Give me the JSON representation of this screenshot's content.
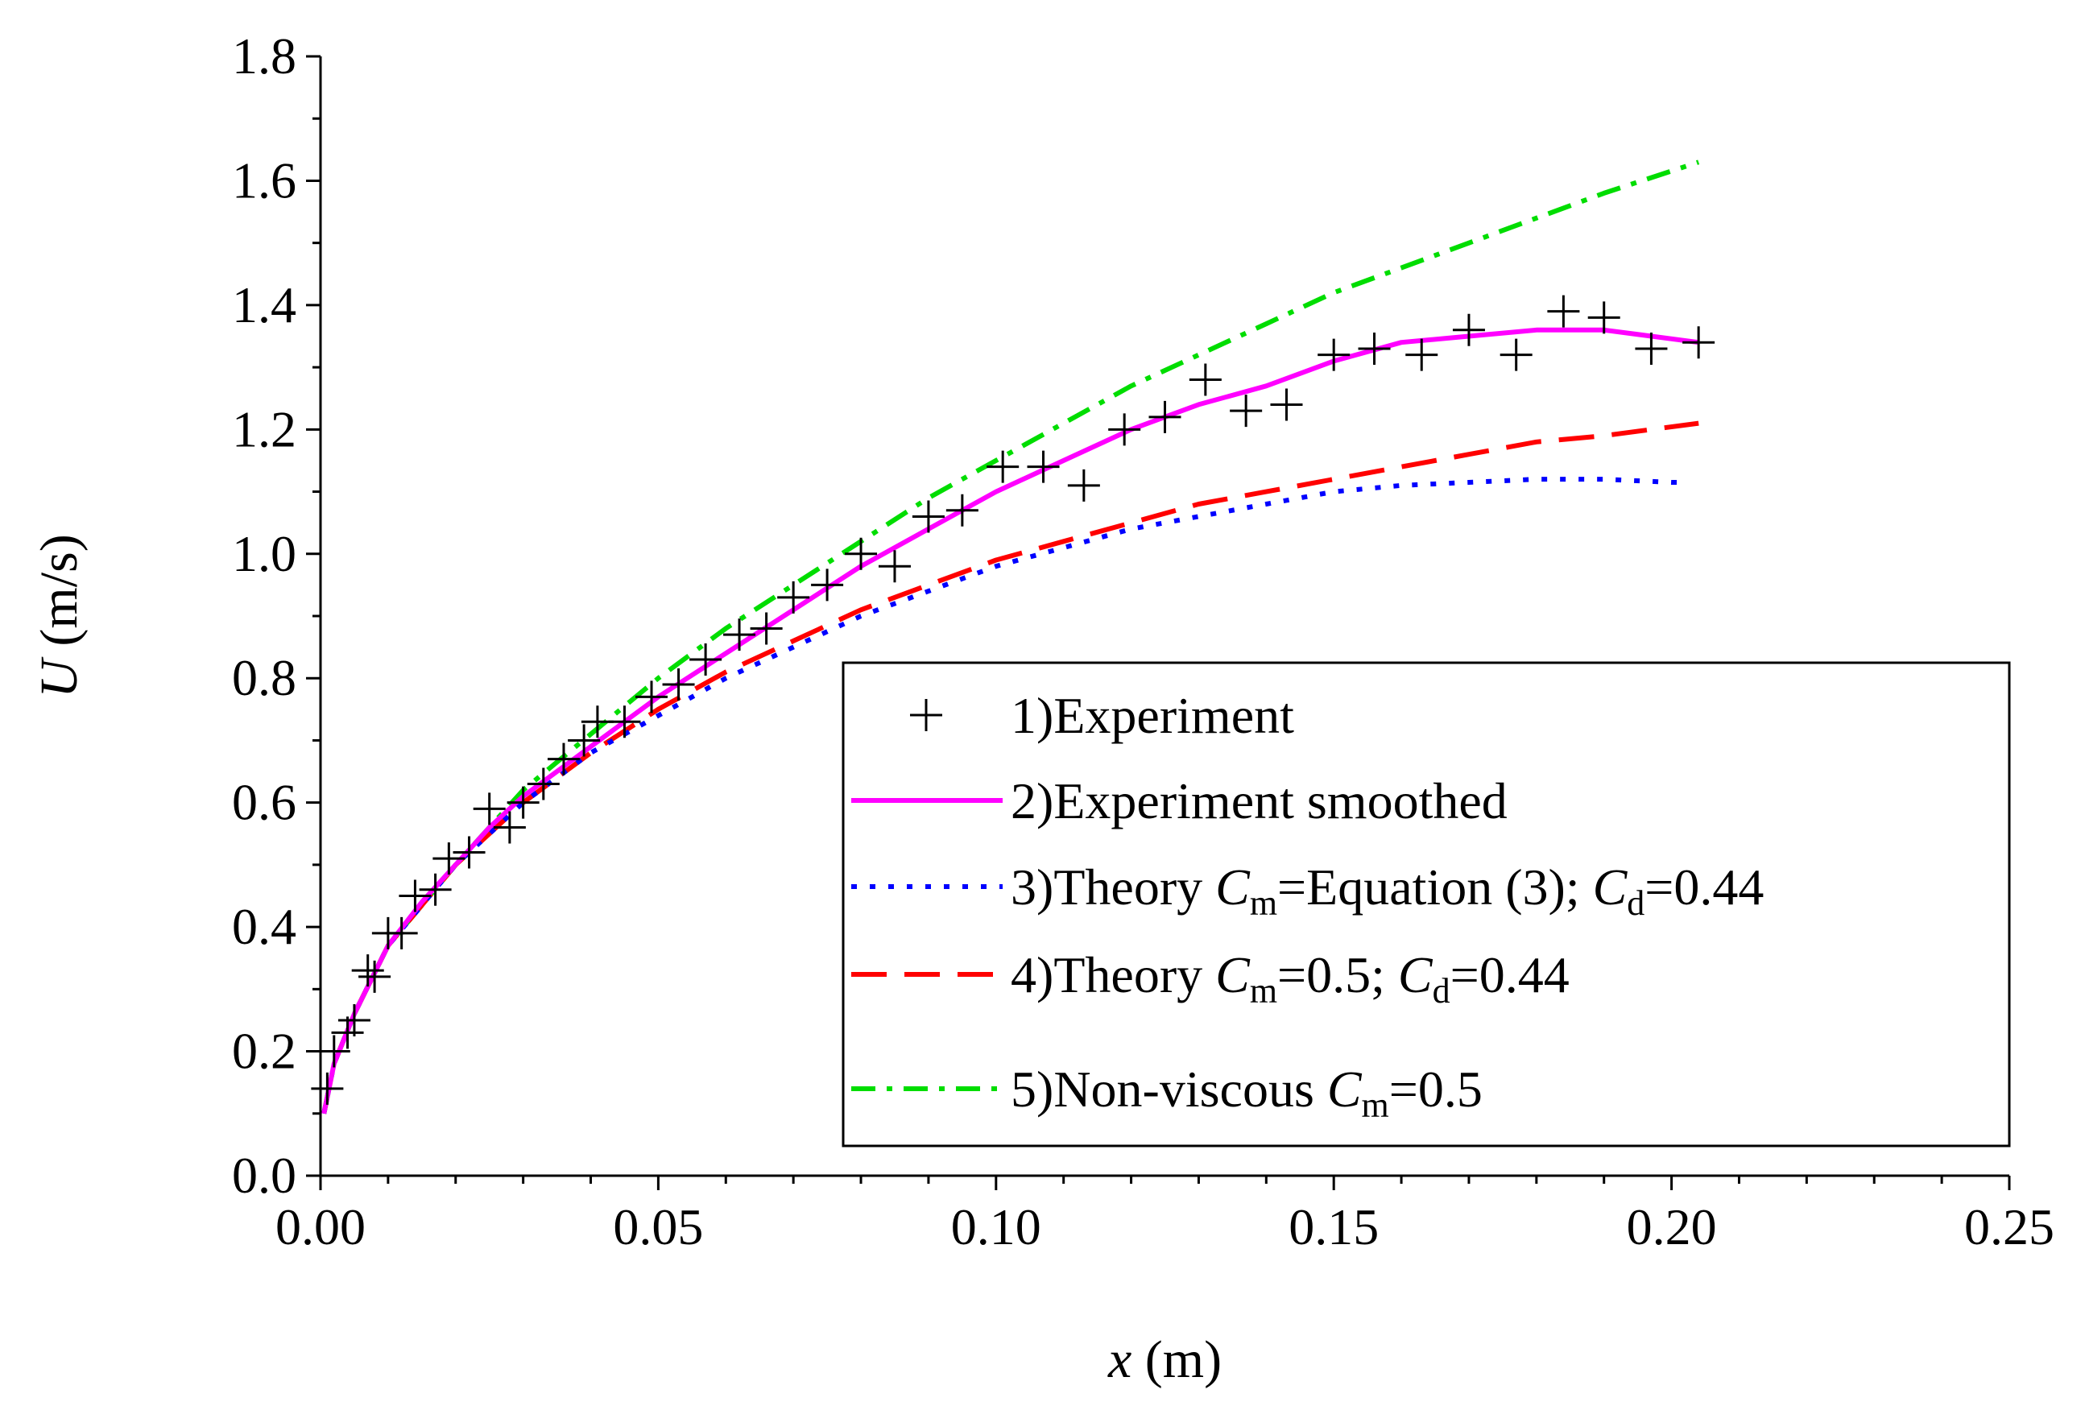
{
  "chart_data": {
    "type": "line",
    "title": "",
    "xlabel": {
      "var": "x",
      "unit": " (m)"
    },
    "ylabel": {
      "var": "U",
      "unit": " (m/s)"
    },
    "xlim": [
      0,
      0.25
    ],
    "ylim": [
      0,
      1.8
    ],
    "x_ticks": [
      0.0,
      0.05,
      0.1,
      0.15,
      0.2,
      0.25
    ],
    "x_tick_labels": [
      "0.00",
      "0.05",
      "0.10",
      "0.15",
      "0.20",
      "0.25"
    ],
    "y_ticks": [
      0.0,
      0.2,
      0.4,
      0.6,
      0.8,
      1.0,
      1.2,
      1.4,
      1.6,
      1.8
    ],
    "y_tick_labels": [
      "0.0",
      "0.2",
      "0.4",
      "0.6",
      "0.8",
      "1.0",
      "1.2",
      "1.4",
      "1.6",
      "1.8"
    ],
    "grid": false,
    "legend_position": "lower-right",
    "series": [
      {
        "name": "1)Experiment",
        "style": "markers-plus",
        "color": "#000000",
        "points": [
          [
            0.001,
            0.14
          ],
          [
            0.002,
            0.2
          ],
          [
            0.004,
            0.23
          ],
          [
            0.005,
            0.25
          ],
          [
            0.007,
            0.33
          ],
          [
            0.008,
            0.32
          ],
          [
            0.01,
            0.39
          ],
          [
            0.012,
            0.39
          ],
          [
            0.014,
            0.45
          ],
          [
            0.017,
            0.46
          ],
          [
            0.019,
            0.51
          ],
          [
            0.022,
            0.52
          ],
          [
            0.025,
            0.59
          ],
          [
            0.028,
            0.56
          ],
          [
            0.03,
            0.6
          ],
          [
            0.033,
            0.63
          ],
          [
            0.036,
            0.67
          ],
          [
            0.039,
            0.7
          ],
          [
            0.041,
            0.73
          ],
          [
            0.045,
            0.73
          ],
          [
            0.049,
            0.77
          ],
          [
            0.053,
            0.79
          ],
          [
            0.057,
            0.83
          ],
          [
            0.062,
            0.87
          ],
          [
            0.066,
            0.88
          ],
          [
            0.07,
            0.93
          ],
          [
            0.075,
            0.95
          ],
          [
            0.08,
            1.0
          ],
          [
            0.085,
            0.98
          ],
          [
            0.09,
            1.06
          ],
          [
            0.095,
            1.07
          ],
          [
            0.101,
            1.14
          ],
          [
            0.107,
            1.14
          ],
          [
            0.113,
            1.11
          ],
          [
            0.119,
            1.2
          ],
          [
            0.125,
            1.22
          ],
          [
            0.131,
            1.28
          ],
          [
            0.137,
            1.23
          ],
          [
            0.143,
            1.24
          ],
          [
            0.15,
            1.32
          ],
          [
            0.156,
            1.33
          ],
          [
            0.163,
            1.32
          ],
          [
            0.17,
            1.36
          ],
          [
            0.177,
            1.32
          ],
          [
            0.184,
            1.39
          ],
          [
            0.19,
            1.38
          ],
          [
            0.197,
            1.33
          ],
          [
            0.204,
            1.34
          ]
        ]
      },
      {
        "name": "2)Experiment smoothed",
        "style": "solid",
        "color": "#ff00ff",
        "points": [
          [
            0.0005,
            0.1
          ],
          [
            0.002,
            0.18
          ],
          [
            0.005,
            0.26
          ],
          [
            0.01,
            0.37
          ],
          [
            0.015,
            0.44
          ],
          [
            0.02,
            0.5
          ],
          [
            0.025,
            0.56
          ],
          [
            0.03,
            0.61
          ],
          [
            0.04,
            0.69
          ],
          [
            0.05,
            0.77
          ],
          [
            0.06,
            0.84
          ],
          [
            0.07,
            0.91
          ],
          [
            0.08,
            0.98
          ],
          [
            0.09,
            1.04
          ],
          [
            0.1,
            1.1
          ],
          [
            0.11,
            1.15
          ],
          [
            0.12,
            1.2
          ],
          [
            0.13,
            1.24
          ],
          [
            0.14,
            1.27
          ],
          [
            0.15,
            1.31
          ],
          [
            0.16,
            1.34
          ],
          [
            0.17,
            1.35
          ],
          [
            0.18,
            1.36
          ],
          [
            0.19,
            1.36
          ],
          [
            0.204,
            1.34
          ]
        ]
      },
      {
        "name": "3)Theory",
        "style": "dotted",
        "color": "#0000ff",
        "points": [
          [
            0.0005,
            0.1
          ],
          [
            0.002,
            0.18
          ],
          [
            0.005,
            0.26
          ],
          [
            0.01,
            0.37
          ],
          [
            0.02,
            0.5
          ],
          [
            0.03,
            0.6
          ],
          [
            0.04,
            0.68
          ],
          [
            0.05,
            0.74
          ],
          [
            0.06,
            0.8
          ],
          [
            0.07,
            0.85
          ],
          [
            0.08,
            0.9
          ],
          [
            0.09,
            0.94
          ],
          [
            0.1,
            0.98
          ],
          [
            0.11,
            1.01
          ],
          [
            0.12,
            1.04
          ],
          [
            0.13,
            1.06
          ],
          [
            0.14,
            1.08
          ],
          [
            0.15,
            1.1
          ],
          [
            0.16,
            1.11
          ],
          [
            0.17,
            1.115
          ],
          [
            0.18,
            1.12
          ],
          [
            0.19,
            1.12
          ],
          [
            0.2,
            1.115
          ],
          [
            0.202,
            1.115
          ]
        ]
      },
      {
        "name": "4)Theory",
        "style": "dashed",
        "color": "#ff0000",
        "points": [
          [
            0.0005,
            0.1
          ],
          [
            0.002,
            0.18
          ],
          [
            0.005,
            0.26
          ],
          [
            0.01,
            0.37
          ],
          [
            0.02,
            0.5
          ],
          [
            0.03,
            0.6
          ],
          [
            0.04,
            0.68
          ],
          [
            0.05,
            0.75
          ],
          [
            0.06,
            0.81
          ],
          [
            0.07,
            0.86
          ],
          [
            0.08,
            0.91
          ],
          [
            0.09,
            0.95
          ],
          [
            0.1,
            0.99
          ],
          [
            0.11,
            1.02
          ],
          [
            0.12,
            1.05
          ],
          [
            0.13,
            1.08
          ],
          [
            0.14,
            1.1
          ],
          [
            0.15,
            1.12
          ],
          [
            0.16,
            1.14
          ],
          [
            0.17,
            1.16
          ],
          [
            0.18,
            1.18
          ],
          [
            0.19,
            1.19
          ],
          [
            0.204,
            1.21
          ]
        ]
      },
      {
        "name": "5)Non-viscous",
        "style": "dash-dot",
        "color": "#00dd00",
        "points": [
          [
            0.0005,
            0.1
          ],
          [
            0.002,
            0.18
          ],
          [
            0.005,
            0.26
          ],
          [
            0.01,
            0.37
          ],
          [
            0.02,
            0.5
          ],
          [
            0.03,
            0.62
          ],
          [
            0.04,
            0.71
          ],
          [
            0.05,
            0.8
          ],
          [
            0.06,
            0.88
          ],
          [
            0.07,
            0.95
          ],
          [
            0.08,
            1.02
          ],
          [
            0.09,
            1.09
          ],
          [
            0.1,
            1.15
          ],
          [
            0.11,
            1.21
          ],
          [
            0.12,
            1.27
          ],
          [
            0.13,
            1.32
          ],
          [
            0.14,
            1.37
          ],
          [
            0.15,
            1.42
          ],
          [
            0.16,
            1.46
          ],
          [
            0.17,
            1.5
          ],
          [
            0.18,
            1.54
          ],
          [
            0.19,
            1.58
          ],
          [
            0.204,
            1.63
          ]
        ]
      }
    ],
    "legend": [
      {
        "style": "markers-plus",
        "color": "#000000",
        "parts": [
          {
            "t": "1)Experiment"
          }
        ]
      },
      {
        "style": "solid",
        "color": "#ff00ff",
        "parts": [
          {
            "t": "2)Experiment smoothed"
          }
        ]
      },
      {
        "style": "dotted",
        "color": "#0000ff",
        "parts": [
          {
            "t": "3)Theory "
          },
          {
            "t": "C",
            "i": true
          },
          {
            "t": "m",
            "sub": true
          },
          {
            "t": "=Equation (3); "
          },
          {
            "t": "C",
            "i": true
          },
          {
            "t": "d",
            "sub": true
          },
          {
            "t": "=0.44"
          }
        ]
      },
      {
        "style": "dashed",
        "color": "#ff0000",
        "parts": [
          {
            "t": "4)Theory "
          },
          {
            "t": "C",
            "i": true
          },
          {
            "t": "m",
            "sub": true
          },
          {
            "t": "=0.5; "
          },
          {
            "t": "C",
            "i": true
          },
          {
            "t": "d",
            "sub": true
          },
          {
            "t": "=0.44"
          }
        ]
      },
      {
        "style": "dash-dot",
        "color": "#00dd00",
        "parts": [
          {
            "t": "5)Non-viscous "
          },
          {
            "t": "C",
            "i": true
          },
          {
            "t": "m",
            "sub": true
          },
          {
            "t": "=0.5"
          }
        ]
      }
    ]
  }
}
